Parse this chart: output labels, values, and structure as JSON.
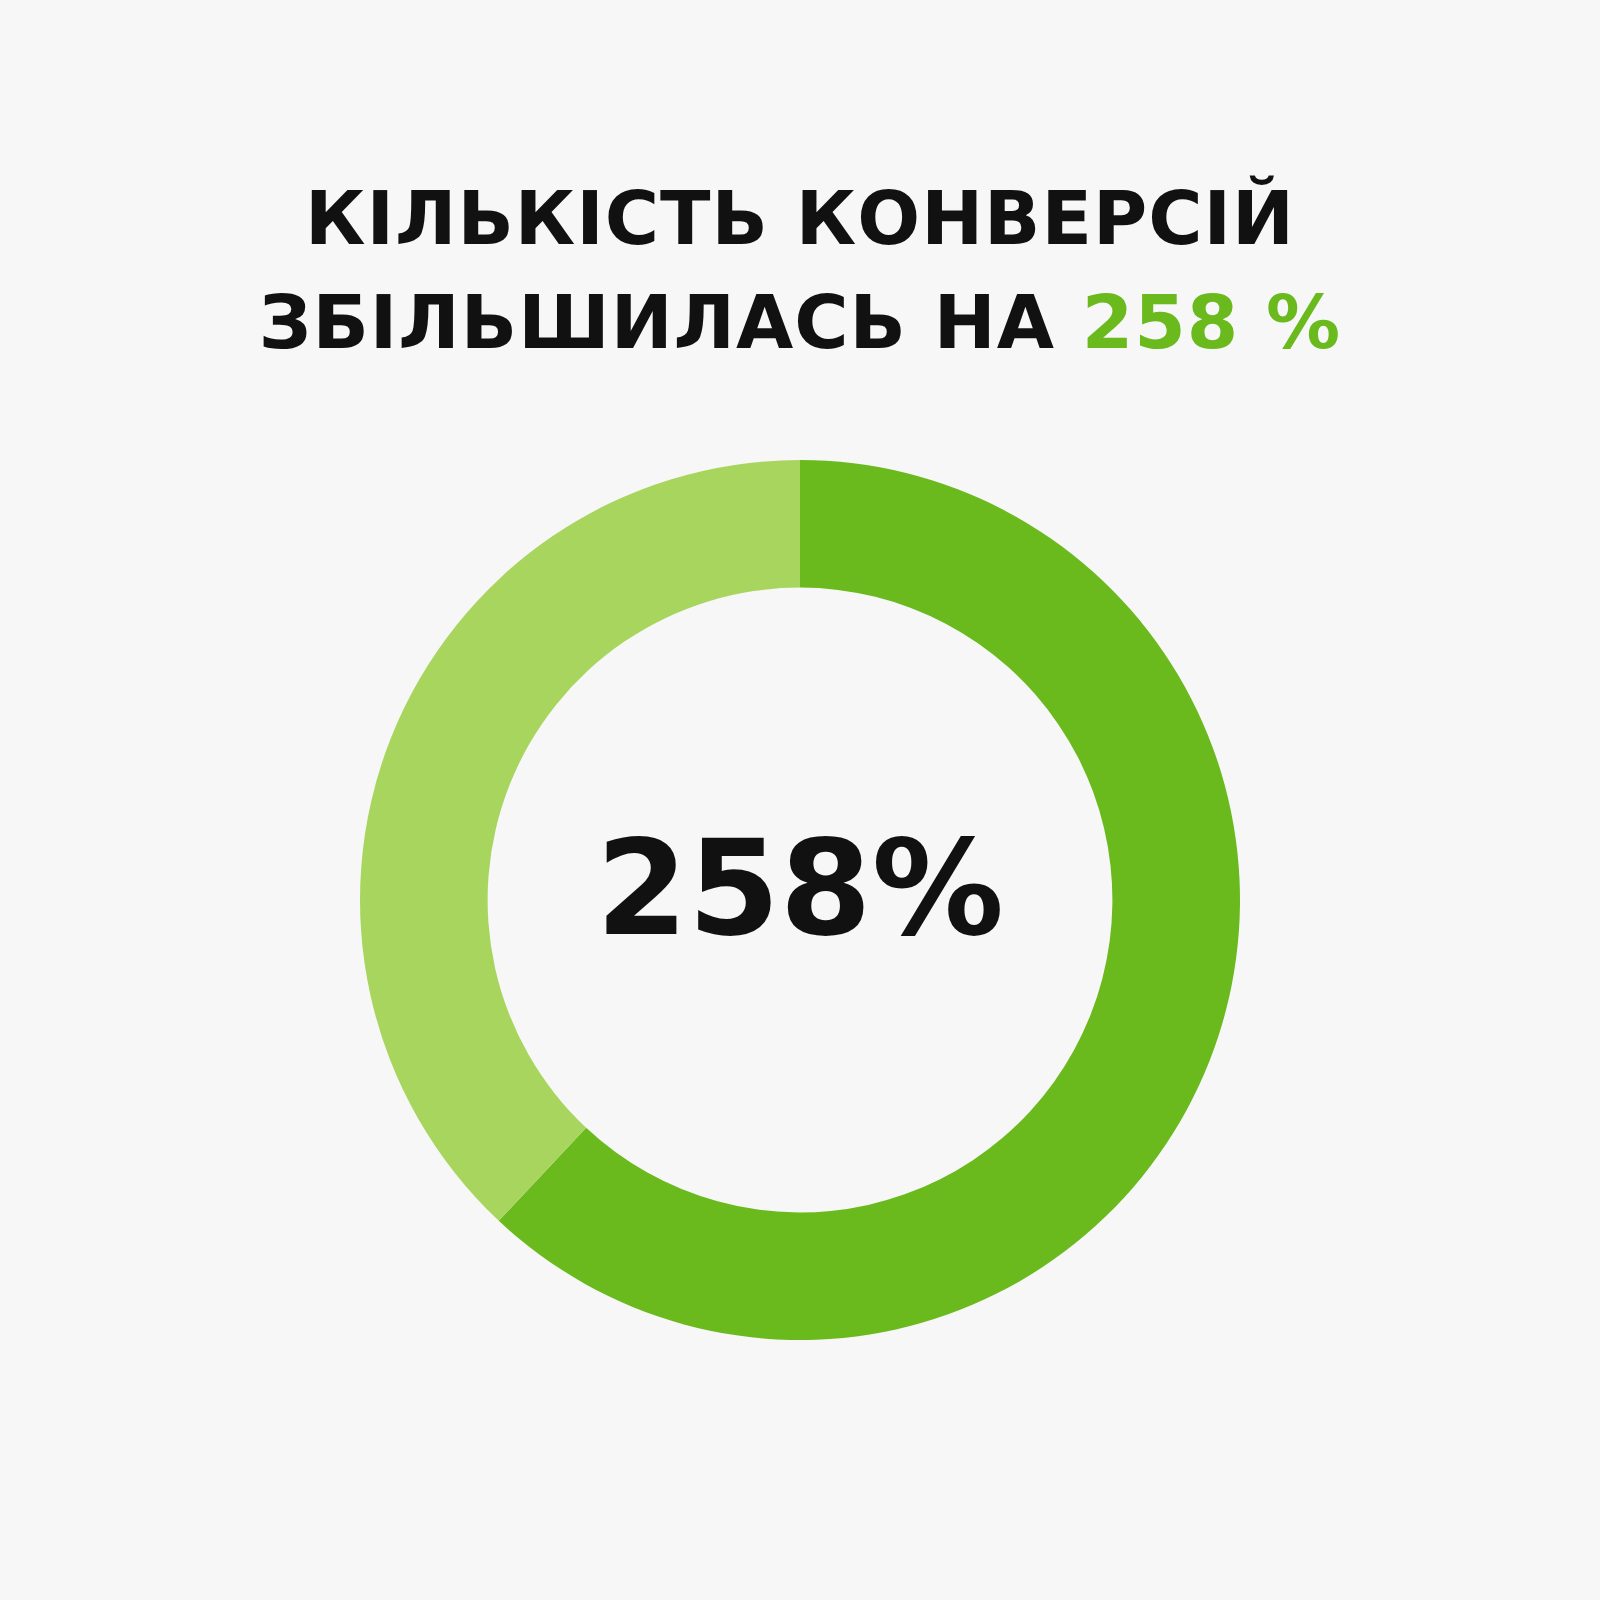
{
  "chart_data": {
    "type": "donut",
    "title": "КІЛЬКІСТЬ КОНВЕРСІЙ ЗБІЛЬШИЛАСЬ НА 258 %",
    "categories": [
      null,
      null
    ],
    "values": [
      62,
      38
    ],
    "colors": [
      "#6aba1e",
      "#a8d55e"
    ],
    "annotations": [
      "258%"
    ],
    "legend": false
  }
}
